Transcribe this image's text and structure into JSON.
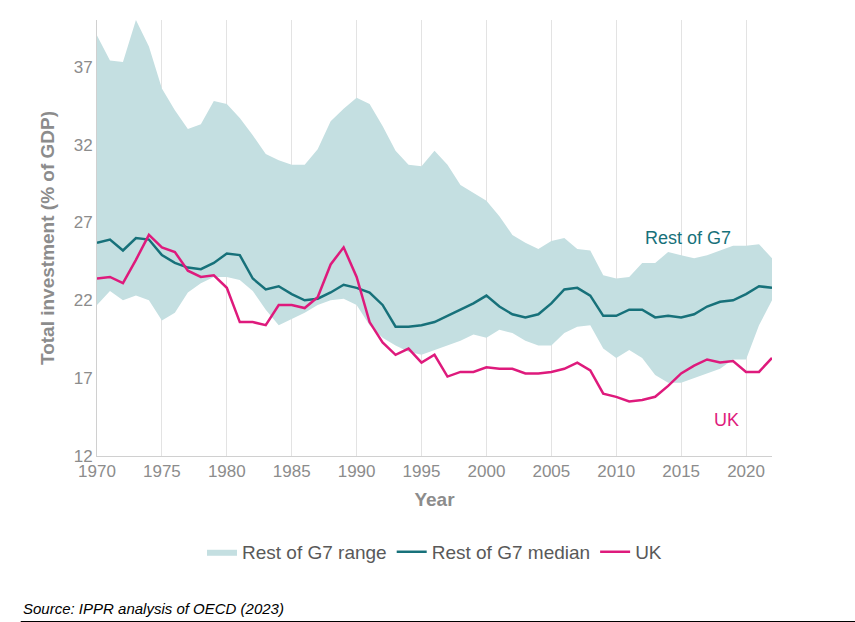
{
  "chart_data": {
    "type": "line",
    "x_label": "Year",
    "y_label": "Total investment (% of GDP)",
    "x": [
      1970,
      1971,
      1972,
      1973,
      1974,
      1975,
      1976,
      1977,
      1978,
      1979,
      1980,
      1981,
      1982,
      1983,
      1984,
      1985,
      1986,
      1987,
      1988,
      1989,
      1990,
      1991,
      1992,
      1993,
      1994,
      1995,
      1996,
      1997,
      1998,
      1999,
      2000,
      2001,
      2002,
      2003,
      2004,
      2005,
      2006,
      2007,
      2008,
      2009,
      2010,
      2011,
      2012,
      2013,
      2014,
      2015,
      2016,
      2017,
      2018,
      2019,
      2020,
      2021,
      2022
    ],
    "xlim": [
      1970,
      2022
    ],
    "xticks": [
      1970,
      1975,
      1980,
      1985,
      1990,
      1995,
      2000,
      2005,
      2010,
      2015,
      2020
    ],
    "ylim": [
      12,
      40
    ],
    "yticks": [
      12,
      17,
      22,
      27,
      32,
      37
    ],
    "grid": true,
    "legend": "bottom",
    "series": [
      {
        "name": "Rest of G7 range",
        "type": "area",
        "color": "#c4dfe1",
        "lower": [
          21.7,
          22.6,
          22.0,
          22.3,
          22.0,
          20.7,
          21.2,
          22.5,
          23.1,
          23.5,
          23.5,
          23.3,
          22.6,
          21.4,
          20.4,
          20.8,
          21.2,
          21.7,
          22.0,
          22.1,
          21.7,
          20.4,
          19.6,
          19.1,
          18.7,
          18.5,
          18.8,
          19.1,
          19.4,
          19.8,
          19.6,
          20.1,
          19.9,
          19.4,
          19.1,
          19.1,
          19.9,
          20.3,
          20.4,
          18.9,
          18.3,
          18.8,
          18.3,
          17.2,
          16.7,
          16.7,
          17.0,
          17.3,
          17.6,
          18.2,
          18.2,
          20.4,
          22.0
        ],
        "upper": [
          39.0,
          37.4,
          37.3,
          40.0,
          38.3,
          35.6,
          34.2,
          33.0,
          33.3,
          34.8,
          34.6,
          33.7,
          32.6,
          31.4,
          31.0,
          30.7,
          30.7,
          31.7,
          33.5,
          34.3,
          35.0,
          34.6,
          33.2,
          31.6,
          30.7,
          30.6,
          31.6,
          30.7,
          29.4,
          28.9,
          28.4,
          27.4,
          26.2,
          25.7,
          25.3,
          25.8,
          26.0,
          25.3,
          25.2,
          23.6,
          23.4,
          23.5,
          24.4,
          24.4,
          25.1,
          24.9,
          24.7,
          24.9,
          25.2,
          25.5,
          25.5,
          25.6,
          24.7
        ]
      },
      {
        "name": "Rest of G7 median",
        "type": "line",
        "color": "#17717a",
        "values": [
          25.7,
          25.9,
          25.2,
          26.0,
          25.9,
          24.9,
          24.4,
          24.1,
          24.0,
          24.4,
          25.0,
          24.9,
          23.4,
          22.7,
          22.9,
          22.4,
          22.0,
          22.1,
          22.5,
          23.0,
          22.8,
          22.5,
          21.7,
          20.3,
          20.3,
          20.4,
          20.6,
          21.0,
          21.4,
          21.8,
          22.3,
          21.6,
          21.1,
          20.9,
          21.1,
          21.8,
          22.7,
          22.8,
          22.3,
          21.0,
          21.0,
          21.4,
          21.4,
          20.9,
          21.0,
          20.9,
          21.1,
          21.6,
          21.9,
          22.0,
          22.4,
          22.9,
          22.8
        ]
      },
      {
        "name": "UK",
        "type": "line",
        "color": "#de1a7c",
        "values": [
          23.4,
          23.5,
          23.1,
          24.6,
          26.2,
          25.4,
          25.1,
          23.9,
          23.5,
          23.6,
          22.8,
          20.6,
          20.6,
          20.4,
          21.7,
          21.7,
          21.5,
          22.2,
          24.3,
          25.4,
          23.5,
          20.6,
          19.3,
          18.5,
          18.9,
          18.0,
          18.5,
          17.1,
          17.4,
          17.4,
          17.7,
          17.6,
          17.6,
          17.3,
          17.3,
          17.4,
          17.6,
          18.0,
          17.5,
          16.0,
          15.8,
          15.5,
          15.6,
          15.8,
          16.5,
          17.3,
          17.8,
          18.2,
          18.0,
          18.1,
          17.4,
          17.4,
          18.3
        ]
      }
    ],
    "annotations": [
      {
        "text": "Rest of G7",
        "x": 2015.5,
        "y": 26.0,
        "color": "#17717a"
      },
      {
        "text": "UK",
        "x": 2018.5,
        "y": 14.3,
        "color": "#de1a7c"
      },
      {
        "text": "Source: IPPR analysis of OECD (2023)"
      }
    ]
  }
}
